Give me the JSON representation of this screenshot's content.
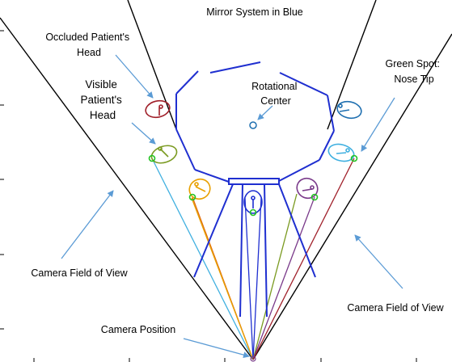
{
  "title": "Mirror System in Blue",
  "labels": {
    "occluded_head": [
      "Occluded Patient's",
      "Head"
    ],
    "visible_head": [
      "Visible",
      "Patient's",
      "Head"
    ],
    "rotational_center": [
      "Rotational",
      "Center"
    ],
    "green_spot": [
      "Green Spot:",
      "Nose Tip"
    ],
    "camera_fov_left": "Camera Field of View",
    "camera_fov_right": "Camera Field of View",
    "camera_position": "Camera Position"
  },
  "colors": {
    "mirror": "#1f2fd0",
    "annotation_arrow": "#5b9bd5",
    "field_of_view": "#000000",
    "nose_tip": "#22c422",
    "head_occluded": "#a0202a",
    "head_left": "#7a9a20",
    "head_bottom_left": "#e8a000",
    "head_center": "#1f2fd0",
    "head_bottom_right": "#7a3a8a",
    "head_right": "#40b0e0",
    "head_occluded_right": "#1f6fb0",
    "ray_left": "#40b0e0",
    "ray_bottom_left": "#e06a10",
    "ray_center": "#1f2fd0",
    "ray_bottom_right_a": "#7a9a20",
    "ray_bottom_right_b": "#7a3a8a",
    "ray_right": "#a0202a"
  }
}
